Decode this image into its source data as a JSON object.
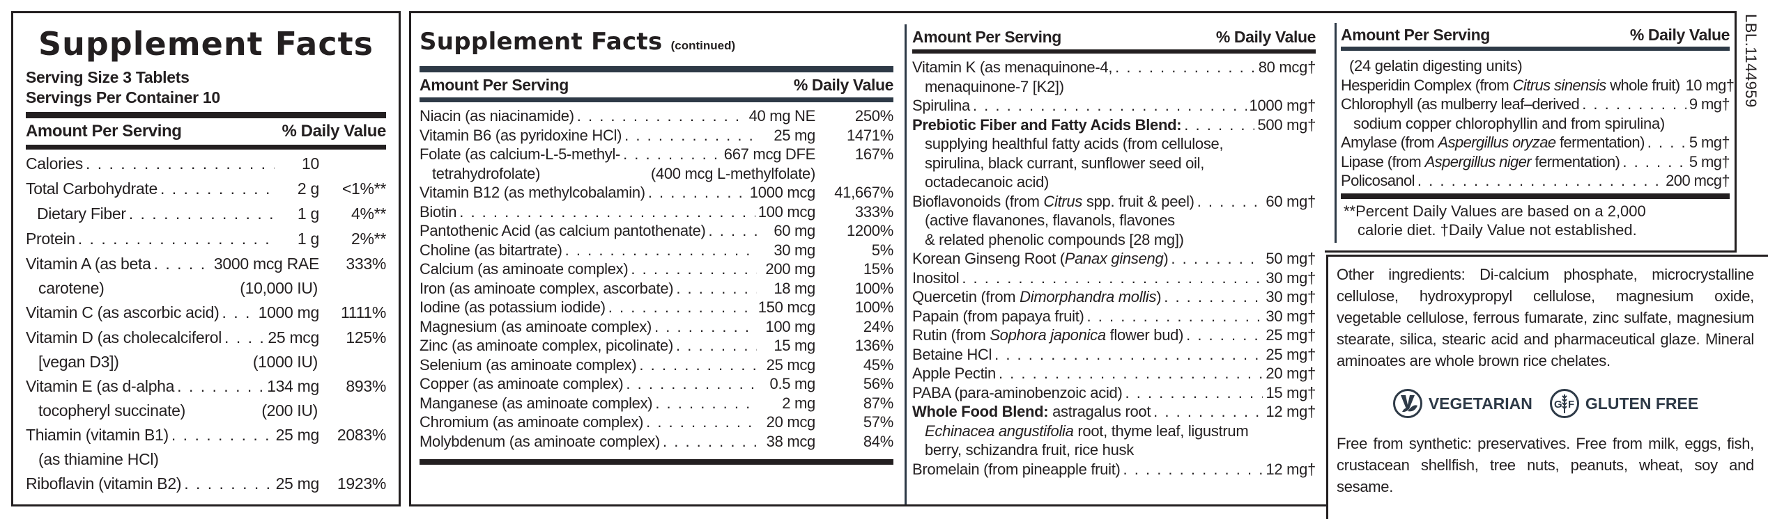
{
  "panel1": {
    "title": "Supplement Facts",
    "serving_size": "Serving Size 3 Tablets",
    "servings_per_container": "Servings Per Container 10",
    "header_left": "Amount Per Serving",
    "header_right": "% Daily Value",
    "rows": [
      {
        "name": "Calories",
        "amount": "10",
        "dv": ""
      },
      {
        "name": "Total Carbohydrate",
        "amount": "2 g",
        "dv": "<1%**"
      },
      {
        "name": "Dietary Fiber",
        "amount": "1 g",
        "dv": "4%**",
        "indent": true
      },
      {
        "name": "Protein",
        "amount": "1 g",
        "dv": "2%**"
      },
      {
        "name": "Vitamin A (as beta",
        "amount": "3000 mcg RAE",
        "dv": "333%",
        "sub": "carotene)",
        "sub_amount": "(10,000 IU)"
      },
      {
        "name": "Vitamin C (as ascorbic acid)",
        "amount": "1000 mg",
        "dv": "1111%"
      },
      {
        "name": "Vitamin D (as cholecalciferol",
        "amount": "25 mcg",
        "dv": "125%",
        "sub": "[vegan D3])",
        "sub_amount": "(1000 IU)"
      },
      {
        "name": "Vitamin E (as d-alpha",
        "amount": "134 mg",
        "dv": "893%",
        "sub": "tocopheryl succinate)",
        "sub_amount": "(200 IU)"
      },
      {
        "name": "Thiamin (vitamin B1)",
        "amount": "25 mg",
        "dv": "2083%",
        "sub": "(as thiamine HCl)",
        "sub_amount": ""
      },
      {
        "name": "Riboflavin (vitamin B2)",
        "amount": "25 mg",
        "dv": "1923%"
      }
    ]
  },
  "panel2": {
    "title": "Supplement Facts",
    "title_suffix": "(continued)",
    "header_left": "Amount Per Serving",
    "header_right": "% Daily Value",
    "rows": [
      {
        "name": "Niacin (as niacinamide)",
        "amount": "40 mg NE",
        "dv": "250%"
      },
      {
        "name": "Vitamin B6 (as pyridoxine HCl)",
        "amount": "25 mg",
        "dv": "1471%"
      },
      {
        "name": "Folate (as calcium-L-5-methyl-",
        "amount": "667 mcg DFE",
        "dv": "167%",
        "sub": "tetrahydrofolate)",
        "sub_amount": "(400 mcg L-methylfolate)"
      },
      {
        "name": "Vitamin B12 (as methylcobalamin)",
        "amount": "1000 mcg",
        "dv": "41,667%"
      },
      {
        "name": "Biotin",
        "amount": "100 mcg",
        "dv": "333%"
      },
      {
        "name": "Pantothenic Acid (as calcium pantothenate)",
        "amount": "60 mg",
        "dv": "1200%"
      },
      {
        "name": "Choline (as bitartrate)",
        "amount": "30 mg",
        "dv": "5%"
      },
      {
        "name": "Calcium (as aminoate complex)",
        "amount": "200 mg",
        "dv": "15%"
      },
      {
        "name": "Iron (as aminoate complex, ascorbate)",
        "amount": "18 mg",
        "dv": "100%"
      },
      {
        "name": "Iodine (as potassium iodide)",
        "amount": "150 mcg",
        "dv": "100%"
      },
      {
        "name": "Magnesium (as aminoate complex)",
        "amount": "100 mg",
        "dv": "24%"
      },
      {
        "name": "Zinc (as aminoate complex, picolinate)",
        "amount": "15 mg",
        "dv": "136%"
      },
      {
        "name": "Selenium (as aminoate complex)",
        "amount": "25 mcg",
        "dv": "45%"
      },
      {
        "name": "Copper (as aminoate complex)",
        "amount": "0.5 mg",
        "dv": "56%"
      },
      {
        "name": "Manganese (as aminoate complex)",
        "amount": "2 mg",
        "dv": "87%"
      },
      {
        "name": "Chromium (as aminoate complex)",
        "amount": "20 mcg",
        "dv": "57%"
      },
      {
        "name": "Molybdenum (as aminoate complex)",
        "amount": "38 mcg",
        "dv": "84%"
      }
    ]
  },
  "panel3": {
    "header_left": "Amount Per Serving",
    "header_right": "% Daily Value",
    "rows": [
      {
        "name": "Vitamin K (as menaquinone-4,",
        "amount": "80 mcg†",
        "sub": [
          "menaquinone-7 [K2])"
        ]
      },
      {
        "name": "Spirulina",
        "amount": "1000 mg†"
      },
      {
        "name_bold": "Prebiotic Fiber and Fatty Acids Blend:",
        "amount": "500 mg†",
        "sub": [
          "supplying healthful fatty acids (from cellulose,",
          "spirulina, black currant, sunflower seed oil,",
          "octadecanoic acid)"
        ]
      },
      {
        "name": "Bioflavonoids (from ",
        "name_italic": "Citrus",
        "name_after": " spp. fruit & peel)",
        "amount": "60 mg†",
        "sub": [
          "(active flavanones, flavanols, flavones",
          "& related phenolic compounds [28 mg])"
        ]
      },
      {
        "name": "Korean Ginseng Root (",
        "name_italic": "Panax ginseng",
        "name_after": ")",
        "amount": "50 mg†"
      },
      {
        "name": "Inositol",
        "amount": "30 mg†"
      },
      {
        "name": "Quercetin (from ",
        "name_italic": "Dimorphandra mollis",
        "name_after": ")",
        "amount": "30 mg†"
      },
      {
        "name": "Papain (from papaya fruit)",
        "amount": "30 mg†"
      },
      {
        "name": "Rutin (from ",
        "name_italic": "Sophora japonica",
        "name_after": " flower bud)",
        "amount": "25 mg†"
      },
      {
        "name": "Betaine HCl",
        "amount": "25 mg†"
      },
      {
        "name": "Apple Pectin",
        "amount": "20 mg†"
      },
      {
        "name": "PABA (para-aminobenzoic acid)",
        "amount": "15 mg†"
      },
      {
        "name_bold": "Whole Food Blend:",
        "name_after": " astragalus root",
        "amount": "12 mg†",
        "sub_italic": "Echinacea angustifolia",
        "sub_after": " root, thyme leaf, ligustrum",
        "sub2": "berry, schizandra fruit, rice husk"
      },
      {
        "name": "Bromelain (from pineapple fruit)",
        "amount": "12 mg†"
      }
    ]
  },
  "panel4": {
    "header_left": "Amount Per Serving",
    "header_right": "% Daily Value",
    "continued_line": "(24 gelatin digesting units)",
    "rows": [
      {
        "name": "Hesperidin Complex (from ",
        "name_italic": "Citrus sinensis",
        "name_after": " whole fruit)",
        "amount": "10 mg†"
      },
      {
        "name": "Chlorophyll (as mulberry leaf–derived",
        "amount": "9 mg†",
        "sub": "sodium copper chlorophyllin and from spirulina)"
      },
      {
        "name": "Amylase (from ",
        "name_italic": "Aspergillus oryzae",
        "name_after": " fermentation)",
        "amount": "5 mg†"
      },
      {
        "name": "Lipase (from ",
        "name_italic": "Aspergillus niger",
        "name_after": " fermentation)",
        "amount": "5 mg†"
      },
      {
        "name": "Policosanol",
        "amount": "200 mcg†"
      }
    ],
    "footnote_line1": "**Percent Daily Values are based on a 2,000",
    "footnote_line2": "calorie diet. †Daily Value not established."
  },
  "other": {
    "ingredients": "Other ingredients: Di-calcium phosphate, microcrystalline cellulose, hydroxypropyl cellulose, magnesium oxide, vegetable cellulose, ferrous fumarate, zinc sulfate, magnesium stearate, silica, stearic acid and pharmaceutical glaze. Mineral aminoates are whole brown rice chelates.",
    "badges": [
      {
        "icon": "vegetarian-icon",
        "label": "VEGETARIAN"
      },
      {
        "icon": "gluten-free-icon",
        "label": "GLUTEN FREE"
      }
    ],
    "free_from": "Free from synthetic: preservatives. Free from milk, eggs, fish, crustacean shellfish, tree nuts, peanuts, wheat, soy and sesame.",
    "badge_color": "#2e3a47"
  },
  "label_code": "LBL.1144959"
}
